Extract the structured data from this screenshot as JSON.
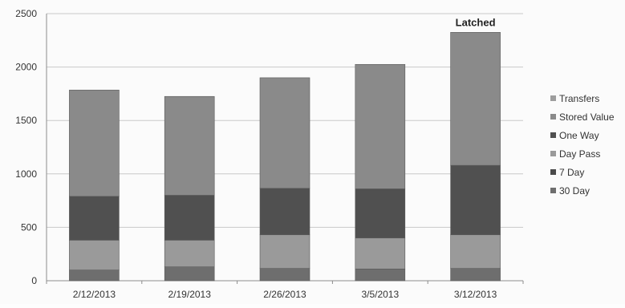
{
  "chart_data": {
    "type": "bar",
    "stacked": true,
    "categories": [
      "2/12/2013",
      "2/19/2013",
      "2/26/2013",
      "3/5/2013",
      "3/12/2013"
    ],
    "series": [
      {
        "name": "30 Day",
        "values": [
          100,
          130,
          115,
          110,
          115
        ],
        "color": "#6e6e6e"
      },
      {
        "name": "7 Day",
        "values": [
          0,
          0,
          0,
          0,
          0
        ],
        "color": "#4a4a4a"
      },
      {
        "name": "Day Pass",
        "values": [
          280,
          250,
          315,
          290,
          315
        ],
        "color": "#9a9a9a"
      },
      {
        "name": "One Way",
        "values": [
          410,
          420,
          435,
          460,
          650
        ],
        "color": "#505050"
      },
      {
        "name": "Stored Value",
        "values": [
          995,
          925,
          1035,
          1165,
          1245
        ],
        "color": "#8a8a8a"
      },
      {
        "name": "Transfers",
        "values": [
          0,
          0,
          0,
          0,
          0
        ],
        "color": "#9d9d9d"
      }
    ],
    "ylim": [
      0,
      2500
    ],
    "yticks": [
      0,
      500,
      1000,
      1500,
      2000,
      2500
    ],
    "grid": true,
    "legend_position": "right",
    "annotations": [
      {
        "text": "Latched",
        "category": "3/12/2013"
      }
    ],
    "title": "",
    "xlabel": "",
    "ylabel": ""
  }
}
